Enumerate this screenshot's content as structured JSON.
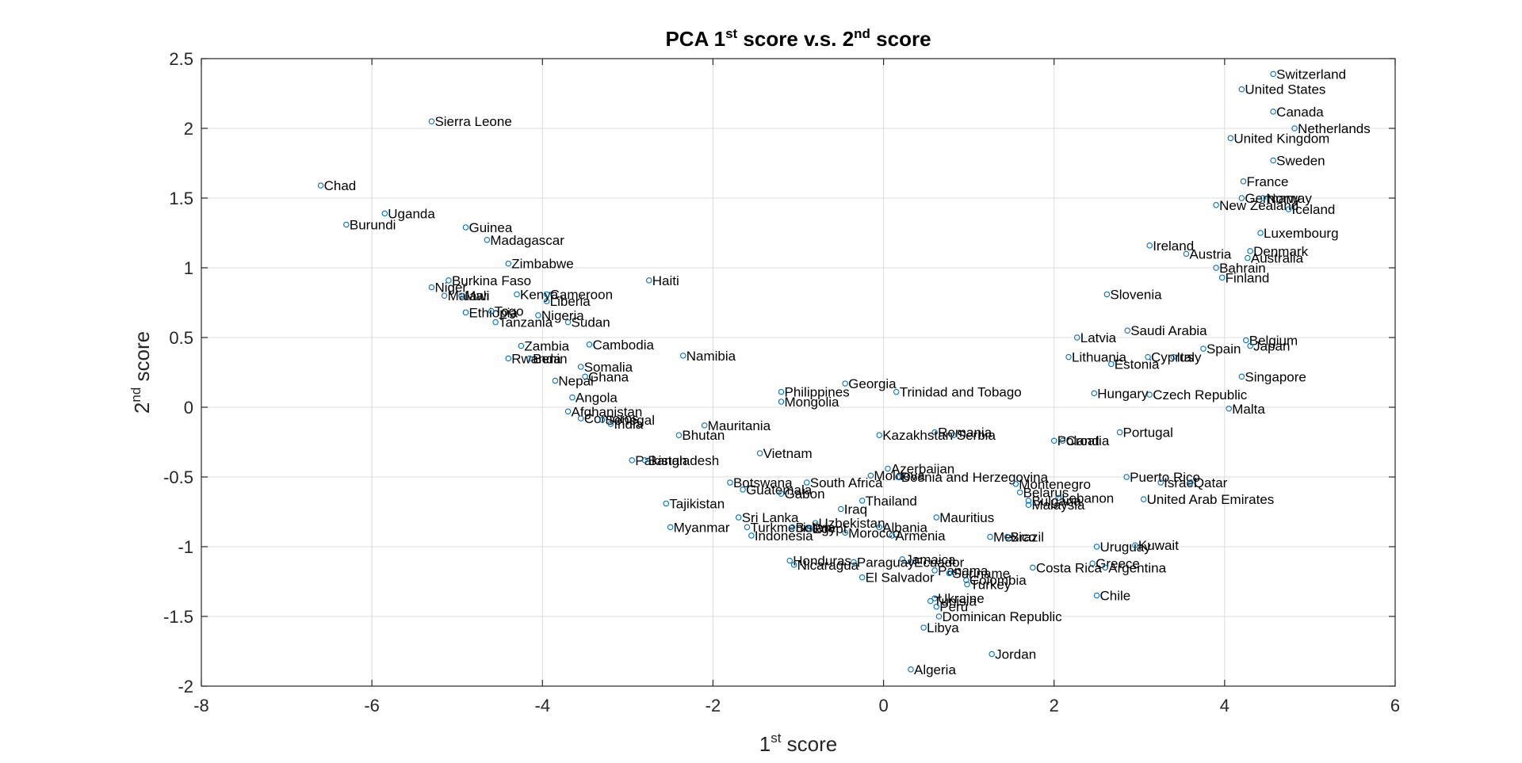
{
  "chart_data": {
    "type": "scatter",
    "title": {
      "prefix": "PCA 1",
      "sup1": "st",
      "middle": " score v.s. 2",
      "sup2": "nd",
      "suffix": " score"
    },
    "xlabel": {
      "prefix": "1",
      "sup": "st",
      "suffix": " score"
    },
    "ylabel": {
      "prefix": "2",
      "sup": "nd",
      "suffix": " score"
    },
    "xlim": [
      -8,
      6
    ],
    "ylim": [
      -2,
      2.5
    ],
    "xticks": [
      -8,
      -6,
      -4,
      -2,
      0,
      2,
      4,
      6
    ],
    "yticks": [
      -2,
      -1.5,
      -1,
      -0.5,
      0,
      0.5,
      1,
      1.5,
      2,
      2.5
    ],
    "xtick_labels": [
      "-8",
      "-6",
      "-4",
      "-2",
      "0",
      "2",
      "4",
      "6"
    ],
    "ytick_labels": [
      "-2",
      "-1.5",
      "-1",
      "-0.5",
      "0",
      "0.5",
      "1",
      "1.5",
      "2",
      "2.5"
    ],
    "grid": true,
    "marker_color": "#0072BD",
    "points": [
      {
        "label": "Switzerland",
        "x": 4.57,
        "y": 2.39
      },
      {
        "label": "United States",
        "x": 4.2,
        "y": 2.28
      },
      {
        "label": "Canada",
        "x": 4.57,
        "y": 2.12
      },
      {
        "label": "Netherlands",
        "x": 4.82,
        "y": 2.0
      },
      {
        "label": "United Kingdom",
        "x": 4.07,
        "y": 1.93
      },
      {
        "label": "Sweden",
        "x": 4.57,
        "y": 1.77
      },
      {
        "label": "France",
        "x": 4.22,
        "y": 1.62
      },
      {
        "label": "Germany",
        "x": 4.2,
        "y": 1.5
      },
      {
        "label": "Norway",
        "x": 4.45,
        "y": 1.5
      },
      {
        "label": "New Zealand",
        "x": 3.9,
        "y": 1.45
      },
      {
        "label": "Iceland",
        "x": 4.75,
        "y": 1.42
      },
      {
        "label": "Luxembourg",
        "x": 4.42,
        "y": 1.25
      },
      {
        "label": "Ireland",
        "x": 3.12,
        "y": 1.16
      },
      {
        "label": "Denmark",
        "x": 4.3,
        "y": 1.12
      },
      {
        "label": "Austria",
        "x": 3.55,
        "y": 1.1
      },
      {
        "label": "Australia",
        "x": 4.27,
        "y": 1.07
      },
      {
        "label": "Bahrain",
        "x": 3.9,
        "y": 1.0
      },
      {
        "label": "Finland",
        "x": 3.97,
        "y": 0.93
      },
      {
        "label": "Slovenia",
        "x": 2.62,
        "y": 0.81
      },
      {
        "label": "Saudi Arabia",
        "x": 2.86,
        "y": 0.55
      },
      {
        "label": "Latvia",
        "x": 2.27,
        "y": 0.5
      },
      {
        "label": "Belgium",
        "x": 4.25,
        "y": 0.48
      },
      {
        "label": "Japan",
        "x": 4.3,
        "y": 0.44
      },
      {
        "label": "Spain",
        "x": 3.75,
        "y": 0.42
      },
      {
        "label": "Lithuania",
        "x": 2.17,
        "y": 0.36
      },
      {
        "label": "Cyprus",
        "x": 3.1,
        "y": 0.36
      },
      {
        "label": "Italy",
        "x": 3.4,
        "y": 0.36
      },
      {
        "label": "Estonia",
        "x": 2.67,
        "y": 0.31
      },
      {
        "label": "Singapore",
        "x": 4.2,
        "y": 0.22
      },
      {
        "label": "Hungary",
        "x": 2.47,
        "y": 0.1
      },
      {
        "label": "Czech Republic",
        "x": 3.12,
        "y": 0.09
      },
      {
        "label": "Malta",
        "x": 4.05,
        "y": -0.01
      },
      {
        "label": "Portugal",
        "x": 2.77,
        "y": -0.18
      },
      {
        "label": "Poland",
        "x": 2.0,
        "y": -0.24
      },
      {
        "label": "Croatia",
        "x": 2.1,
        "y": -0.24
      },
      {
        "label": "Romania",
        "x": 0.6,
        "y": -0.18
      },
      {
        "label": "Kazakhstan",
        "x": -0.05,
        "y": -0.2
      },
      {
        "label": "Serbia",
        "x": 0.82,
        "y": -0.2
      },
      {
        "label": "Trinidad and Tobago",
        "x": 0.15,
        "y": 0.11
      },
      {
        "label": "Georgia",
        "x": -0.45,
        "y": 0.17
      },
      {
        "label": "Philippines",
        "x": -1.2,
        "y": 0.11
      },
      {
        "label": "Mongolia",
        "x": -1.2,
        "y": 0.04
      },
      {
        "label": "Azerbaijan",
        "x": 0.05,
        "y": -0.44
      },
      {
        "label": "Moldova",
        "x": -0.15,
        "y": -0.49
      },
      {
        "label": "Bosnia and Herzegovina",
        "x": 0.17,
        "y": -0.5
      },
      {
        "label": "Montenegro",
        "x": 1.55,
        "y": -0.55
      },
      {
        "label": "Puerto Rico",
        "x": 2.85,
        "y": -0.5
      },
      {
        "label": "Israel",
        "x": 3.25,
        "y": -0.54
      },
      {
        "label": "Qatar",
        "x": 3.6,
        "y": -0.54
      },
      {
        "label": "Belarus",
        "x": 1.6,
        "y": -0.61
      },
      {
        "label": "Lebanon",
        "x": 2.05,
        "y": -0.65
      },
      {
        "label": "United Arab Emirates",
        "x": 3.05,
        "y": -0.66
      },
      {
        "label": "Bulgaria",
        "x": 1.7,
        "y": -0.67
      },
      {
        "label": "Malaysia",
        "x": 1.7,
        "y": -0.7
      },
      {
        "label": "Mauritius",
        "x": 0.62,
        "y": -0.79
      },
      {
        "label": "Mexico",
        "x": 1.25,
        "y": -0.93
      },
      {
        "label": "Brazil",
        "x": 1.45,
        "y": -0.93
      },
      {
        "label": "Uruguay",
        "x": 2.5,
        "y": -1.0
      },
      {
        "label": "Kuwait",
        "x": 2.95,
        "y": -0.99
      },
      {
        "label": "Greece",
        "x": 2.45,
        "y": -1.12
      },
      {
        "label": "Argentina",
        "x": 2.6,
        "y": -1.15
      },
      {
        "label": "Costa Rica",
        "x": 1.75,
        "y": -1.15
      },
      {
        "label": "Chile",
        "x": 2.5,
        "y": -1.35
      },
      {
        "label": "Thailand",
        "x": -0.25,
        "y": -0.67
      },
      {
        "label": "Iraq",
        "x": -0.5,
        "y": -0.73
      },
      {
        "label": "Uzbekistan",
        "x": -0.8,
        "y": -0.83
      },
      {
        "label": "Albania",
        "x": -0.05,
        "y": -0.86
      },
      {
        "label": "Morocco",
        "x": -0.45,
        "y": -0.9
      },
      {
        "label": "Armenia",
        "x": 0.1,
        "y": -0.92
      },
      {
        "label": "Jamaica",
        "x": 0.22,
        "y": -1.09
      },
      {
        "label": "Ecuador",
        "x": 0.32,
        "y": -1.11
      },
      {
        "label": "Paraguay",
        "x": -0.35,
        "y": -1.11
      },
      {
        "label": "Panama",
        "x": 0.6,
        "y": -1.17
      },
      {
        "label": "Suriname",
        "x": 0.77,
        "y": -1.19
      },
      {
        "label": "Colombia",
        "x": 0.97,
        "y": -1.24
      },
      {
        "label": "Turkey",
        "x": 0.98,
        "y": -1.27
      },
      {
        "label": "El Salvador",
        "x": -0.25,
        "y": -1.22
      },
      {
        "label": "Honduras",
        "x": -1.1,
        "y": -1.1
      },
      {
        "label": "Nicaragua",
        "x": -1.05,
        "y": -1.13
      },
      {
        "label": "Ukraine",
        "x": 0.6,
        "y": -1.37
      },
      {
        "label": "Tunisia",
        "x": 0.55,
        "y": -1.39
      },
      {
        "label": "Peru",
        "x": 0.62,
        "y": -1.43
      },
      {
        "label": "Dominican Republic",
        "x": 0.65,
        "y": -1.5
      },
      {
        "label": "Libya",
        "x": 0.47,
        "y": -1.58
      },
      {
        "label": "Jordan",
        "x": 1.27,
        "y": -1.77
      },
      {
        "label": "Algeria",
        "x": 0.32,
        "y": -1.88
      },
      {
        "label": "South Africa",
        "x": -0.9,
        "y": -0.54
      },
      {
        "label": "Botswana",
        "x": -1.8,
        "y": -0.54
      },
      {
        "label": "Guatemala",
        "x": -1.65,
        "y": -0.59
      },
      {
        "label": "Gabon",
        "x": -1.2,
        "y": -0.62
      },
      {
        "label": "Sri Lanka",
        "x": -1.7,
        "y": -0.79
      },
      {
        "label": "Turkmenistan",
        "x": -1.6,
        "y": -0.86
      },
      {
        "label": "Bolivia",
        "x": -1.07,
        "y": -0.86
      },
      {
        "label": "Egypt",
        "x": -0.87,
        "y": -0.87
      },
      {
        "label": "Indonesia",
        "x": -1.55,
        "y": -0.92
      },
      {
        "label": "Tajikistan",
        "x": -2.55,
        "y": -0.69
      },
      {
        "label": "Myanmar",
        "x": -2.5,
        "y": -0.86
      },
      {
        "label": "Vietnam",
        "x": -1.45,
        "y": -0.33
      },
      {
        "label": "Pakistan",
        "x": -2.95,
        "y": -0.38
      },
      {
        "label": "Bangladesh",
        "x": -2.8,
        "y": -0.38
      },
      {
        "label": "Mauritania",
        "x": -2.1,
        "y": -0.13
      },
      {
        "label": "Bhutan",
        "x": -2.4,
        "y": -0.2
      },
      {
        "label": "Namibia",
        "x": -2.35,
        "y": 0.37
      },
      {
        "label": "Haiti",
        "x": -2.75,
        "y": 0.91
      },
      {
        "label": "Afghanistan",
        "x": -3.7,
        "y": -0.03
      },
      {
        "label": "Comoros",
        "x": -3.55,
        "y": -0.08
      },
      {
        "label": "Senegal",
        "x": -3.3,
        "y": -0.09
      },
      {
        "label": "India",
        "x": -3.2,
        "y": -0.12
      },
      {
        "label": "Angola",
        "x": -3.65,
        "y": 0.07
      },
      {
        "label": "Nepal",
        "x": -3.85,
        "y": 0.19
      },
      {
        "label": "Ghana",
        "x": -3.5,
        "y": 0.22
      },
      {
        "label": "Somalia",
        "x": -3.55,
        "y": 0.29
      },
      {
        "label": "Rwanda",
        "x": -4.4,
        "y": 0.35
      },
      {
        "label": "Benin",
        "x": -4.15,
        "y": 0.35
      },
      {
        "label": "Zambia",
        "x": -4.25,
        "y": 0.44
      },
      {
        "label": "Cambodia",
        "x": -3.45,
        "y": 0.45
      },
      {
        "label": "Tanzania",
        "x": -4.55,
        "y": 0.61
      },
      {
        "label": "Sudan",
        "x": -3.7,
        "y": 0.61
      },
      {
        "label": "Nigeria",
        "x": -4.05,
        "y": 0.66
      },
      {
        "label": "Ethiopia",
        "x": -4.9,
        "y": 0.68
      },
      {
        "label": "Togo",
        "x": -4.6,
        "y": 0.69
      },
      {
        "label": "Liberia",
        "x": -3.95,
        "y": 0.76
      },
      {
        "label": "Kenya",
        "x": -4.3,
        "y": 0.81
      },
      {
        "label": "Cameroon",
        "x": -3.95,
        "y": 0.81
      },
      {
        "label": "Malawi",
        "x": -5.15,
        "y": 0.8
      },
      {
        "label": "Mali",
        "x": -4.95,
        "y": 0.8
      },
      {
        "label": "Niger",
        "x": -5.3,
        "y": 0.86
      },
      {
        "label": "Burkina Faso",
        "x": -5.1,
        "y": 0.91
      },
      {
        "label": "Zimbabwe",
        "x": -4.4,
        "y": 1.03
      },
      {
        "label": "Madagascar",
        "x": -4.65,
        "y": 1.2
      },
      {
        "label": "Guinea",
        "x": -4.9,
        "y": 1.29
      },
      {
        "label": "Uganda",
        "x": -5.85,
        "y": 1.39
      },
      {
        "label": "Burundi",
        "x": -6.3,
        "y": 1.31
      },
      {
        "label": "Chad",
        "x": -6.6,
        "y": 1.59
      },
      {
        "label": "Sierra Leone",
        "x": -5.3,
        "y": 2.05
      }
    ]
  }
}
